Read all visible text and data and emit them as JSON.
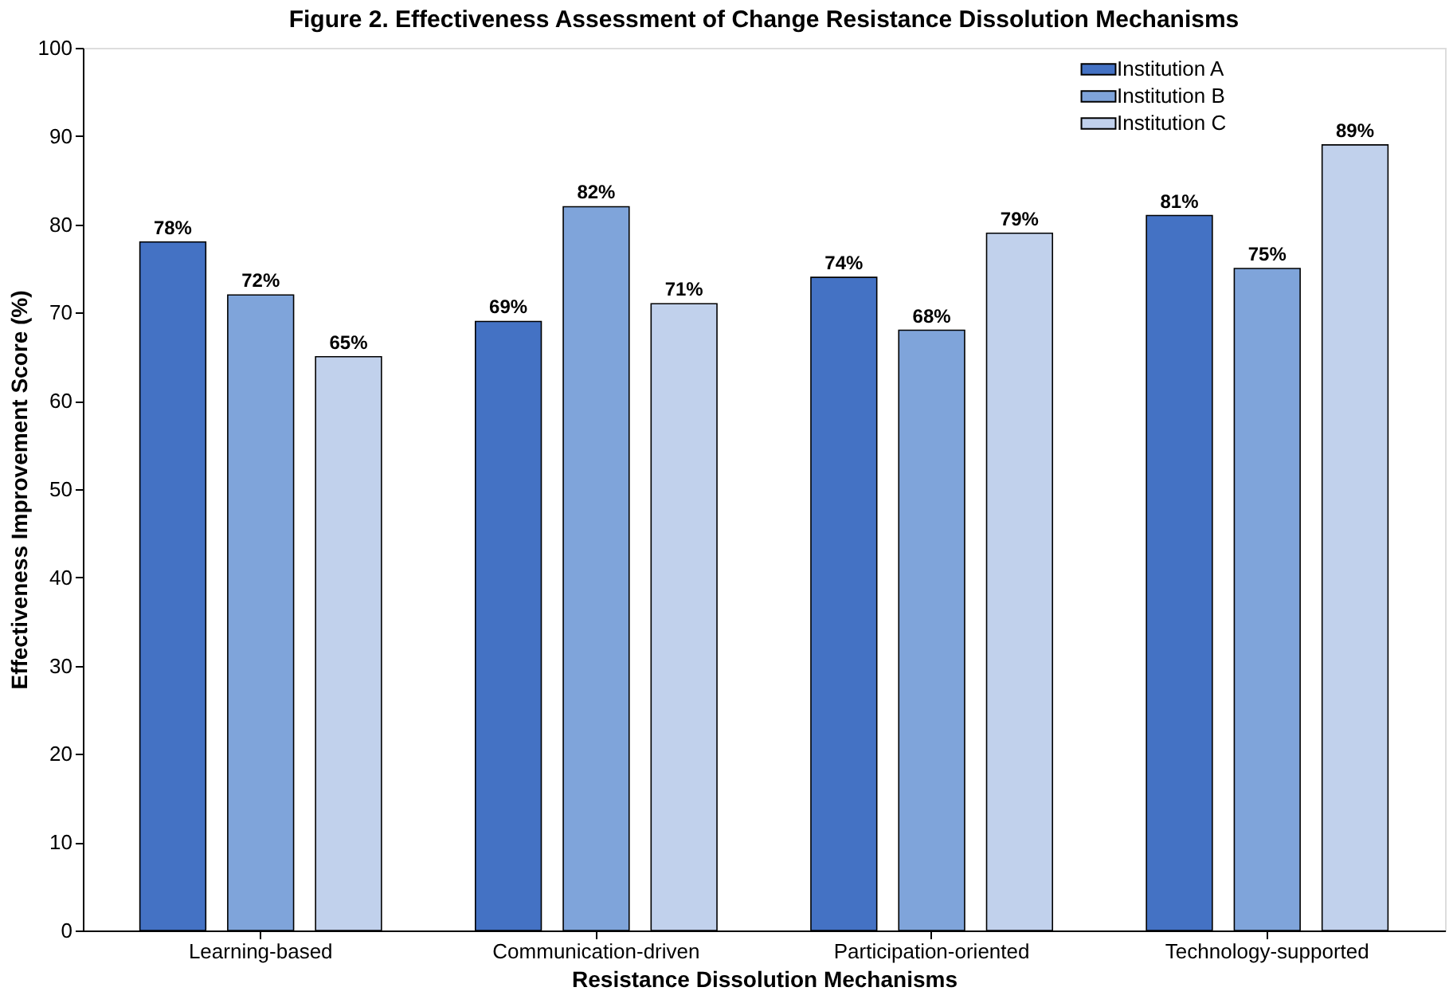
{
  "chart_data": {
    "type": "bar",
    "title": "Figure 2. Effectiveness Assessment of Change Resistance Dissolution Mechanisms",
    "xlabel": "Resistance Dissolution Mechanisms",
    "ylabel": "Effectiveness Improvement Score (%)",
    "categories": [
      "Learning-based",
      "Communication-driven",
      "Participation-oriented",
      "Technology-supported"
    ],
    "series": [
      {
        "name": "Institution A",
        "color": "#4472c4",
        "values": [
          78,
          69,
          74,
          81
        ],
        "value_labels": [
          "78%",
          "69%",
          "74%",
          "81%"
        ]
      },
      {
        "name": "Institution B",
        "color": "#7fa4da",
        "values": [
          72,
          82,
          68,
          75
        ],
        "value_labels": [
          "72%",
          "82%",
          "68%",
          "75%"
        ]
      },
      {
        "name": "Institution C",
        "color": "#c1d1ec",
        "values": [
          65,
          71,
          79,
          89
        ],
        "value_labels": [
          "65%",
          "71%",
          "79%",
          "89%"
        ]
      }
    ],
    "ylim": [
      0,
      100
    ],
    "yticks": [
      0,
      10,
      20,
      30,
      40,
      50,
      60,
      70,
      80,
      90,
      100
    ],
    "grid": false,
    "legend": "top right"
  }
}
